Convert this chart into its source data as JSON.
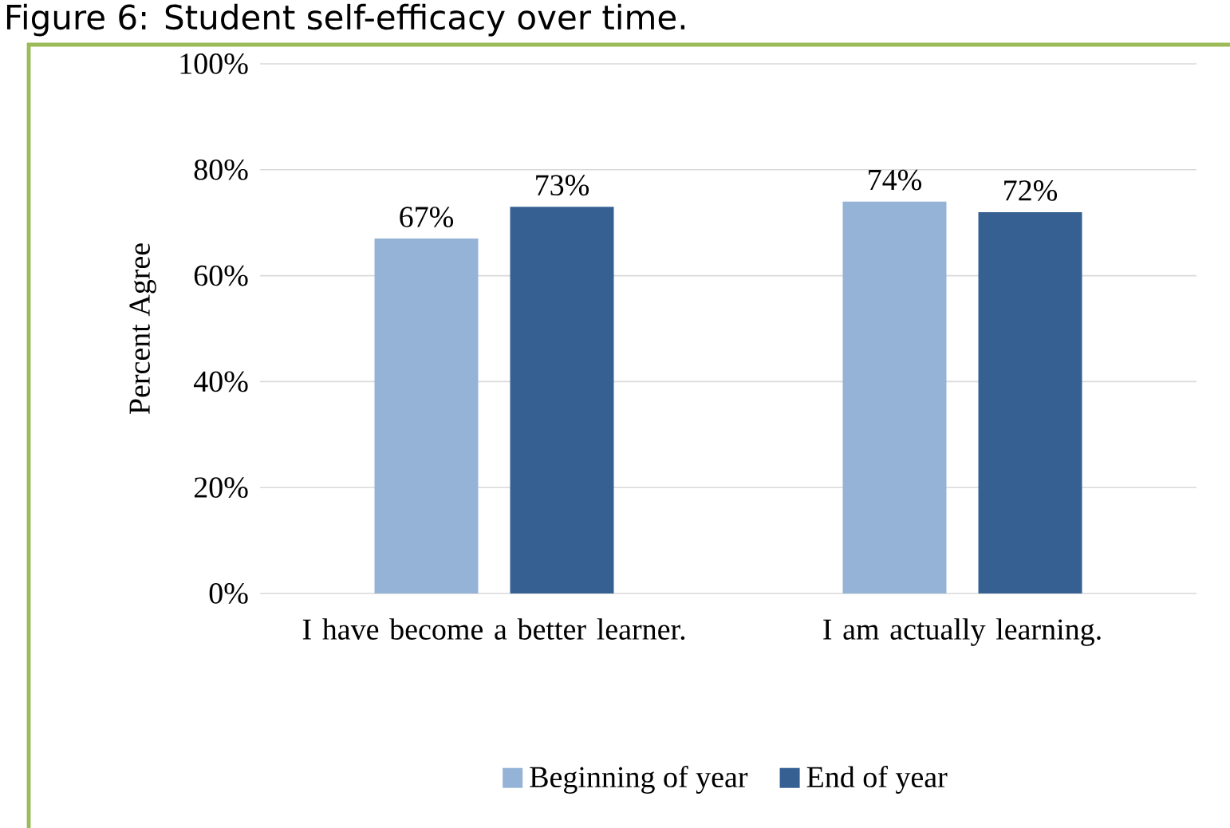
{
  "chart_data": {
    "type": "bar",
    "title": "Figure 6: Student self-efficacy over time.",
    "ylabel": "Percent Agree",
    "categories": [
      "I have become a better learner.",
      "I am actually learning."
    ],
    "series": [
      {
        "name": "Beginning of year",
        "color": "#95b3d7",
        "values": [
          67,
          74
        ],
        "value_labels": [
          "67%",
          "74%"
        ]
      },
      {
        "name": "End of year",
        "color": "#366092",
        "values": [
          73,
          72
        ],
        "value_labels": [
          "73%",
          "72%"
        ]
      }
    ],
    "ylim": [
      0,
      100
    ],
    "yticks": [
      {
        "value": 0,
        "label": "0%"
      },
      {
        "value": 20,
        "label": "20%"
      },
      {
        "value": 40,
        "label": "40%"
      },
      {
        "value": 60,
        "label": "60%"
      },
      {
        "value": 80,
        "label": "80%"
      },
      {
        "value": 100,
        "label": "100%"
      }
    ],
    "grid": "y",
    "legend": "bottom"
  }
}
